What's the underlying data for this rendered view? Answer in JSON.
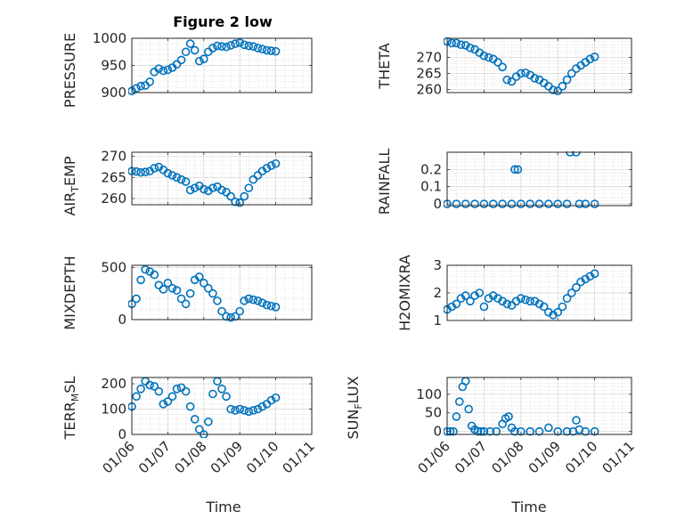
{
  "title": "Figure 2 low",
  "marker_color": "#0072BD",
  "chart_data": [
    {
      "type": "scatter",
      "ylabel": "PRESSURE",
      "ylim": [
        900,
        1000
      ],
      "yticks": [
        900,
        950,
        1000
      ],
      "grid": true,
      "x": [
        "2012-01-06 00:00",
        "2012-01-06 03:00",
        "2012-01-06 06:00",
        "2012-01-06 09:00",
        "2012-01-06 12:00",
        "2012-01-06 15:00",
        "2012-01-06 18:00",
        "2012-01-06 21:00",
        "2012-01-07 00:00",
        "2012-01-07 03:00",
        "2012-01-07 06:00",
        "2012-01-07 09:00",
        "2012-01-07 12:00",
        "2012-01-07 15:00",
        "2012-01-07 18:00",
        "2012-01-07 21:00",
        "2012-01-08 00:00",
        "2012-01-08 03:00",
        "2012-01-08 06:00",
        "2012-01-08 09:00",
        "2012-01-08 12:00",
        "2012-01-08 15:00",
        "2012-01-08 18:00",
        "2012-01-08 21:00",
        "2012-01-09 00:00",
        "2012-01-09 03:00",
        "2012-01-09 06:00",
        "2012-01-09 09:00",
        "2012-01-09 12:00",
        "2012-01-09 15:00",
        "2012-01-09 18:00",
        "2012-01-09 21:00",
        "2012-01-10 00:00"
      ],
      "y": [
        903,
        908,
        912,
        913,
        920,
        938,
        944,
        940,
        942,
        946,
        952,
        960,
        975,
        990,
        978,
        958,
        962,
        975,
        982,
        986,
        985,
        984,
        987,
        990,
        992,
        988,
        986,
        985,
        982,
        980,
        978,
        977,
        976
      ]
    },
    {
      "type": "scatter",
      "ylabel": "THETA",
      "ylim": [
        259,
        276
      ],
      "yticks": [
        260,
        265,
        270
      ],
      "grid": true,
      "x": [
        "2012-01-06 00:00",
        "2012-01-06 03:00",
        "2012-01-06 06:00",
        "2012-01-06 09:00",
        "2012-01-06 12:00",
        "2012-01-06 15:00",
        "2012-01-06 18:00",
        "2012-01-06 21:00",
        "2012-01-07 00:00",
        "2012-01-07 03:00",
        "2012-01-07 06:00",
        "2012-01-07 09:00",
        "2012-01-07 12:00",
        "2012-01-07 15:00",
        "2012-01-07 18:00",
        "2012-01-07 21:00",
        "2012-01-08 00:00",
        "2012-01-08 03:00",
        "2012-01-08 06:00",
        "2012-01-08 09:00",
        "2012-01-08 12:00",
        "2012-01-08 15:00",
        "2012-01-08 18:00",
        "2012-01-08 21:00",
        "2012-01-09 00:00",
        "2012-01-09 03:00",
        "2012-01-09 06:00",
        "2012-01-09 09:00",
        "2012-01-09 12:00",
        "2012-01-09 15:00",
        "2012-01-09 18:00",
        "2012-01-09 21:00",
        "2012-01-10 00:00"
      ],
      "y": [
        275,
        274.5,
        274.5,
        274,
        273.8,
        273,
        272.5,
        271.5,
        270.5,
        270,
        269.5,
        268.5,
        267,
        263,
        262.5,
        264,
        265,
        265.2,
        264.5,
        263.5,
        263,
        262,
        261,
        259.8,
        259.5,
        261,
        263,
        265,
        266.5,
        267.5,
        268.5,
        269.5,
        270.2
      ]
    },
    {
      "type": "scatter",
      "ylabel": "AIR_TEMP",
      "ylim": [
        258.5,
        271
      ],
      "yticks": [
        260,
        265,
        270
      ],
      "grid": true,
      "x": [
        "2012-01-06 00:00",
        "2012-01-06 03:00",
        "2012-01-06 06:00",
        "2012-01-06 09:00",
        "2012-01-06 12:00",
        "2012-01-06 15:00",
        "2012-01-06 18:00",
        "2012-01-06 21:00",
        "2012-01-07 00:00",
        "2012-01-07 03:00",
        "2012-01-07 06:00",
        "2012-01-07 09:00",
        "2012-01-07 12:00",
        "2012-01-07 15:00",
        "2012-01-07 18:00",
        "2012-01-07 21:00",
        "2012-01-08 00:00",
        "2012-01-08 03:00",
        "2012-01-08 06:00",
        "2012-01-08 09:00",
        "2012-01-08 12:00",
        "2012-01-08 15:00",
        "2012-01-08 18:00",
        "2012-01-08 21:00",
        "2012-01-09 00:00",
        "2012-01-09 03:00",
        "2012-01-09 06:00",
        "2012-01-09 09:00",
        "2012-01-09 12:00",
        "2012-01-09 15:00",
        "2012-01-09 18:00",
        "2012-01-09 21:00",
        "2012-01-10 00:00"
      ],
      "y": [
        266.5,
        266.4,
        266.2,
        266.3,
        266.5,
        267.2,
        267.5,
        266.8,
        266,
        265.5,
        265,
        264.5,
        264,
        262,
        262.5,
        263,
        262.2,
        261.8,
        262.5,
        262.8,
        262,
        261.5,
        260.5,
        259.2,
        259,
        260.5,
        262.5,
        264.5,
        265.5,
        266.5,
        267.2,
        267.8,
        268.3
      ]
    },
    {
      "type": "scatter",
      "ylabel": "RAINFALL",
      "ylim": [
        -0.01,
        0.3
      ],
      "yticks": [
        0,
        0.1,
        0.2
      ],
      "grid": true,
      "x": [
        "2012-01-06 00:00",
        "2012-01-06 06:00",
        "2012-01-06 12:00",
        "2012-01-06 18:00",
        "2012-01-07 00:00",
        "2012-01-07 06:00",
        "2012-01-07 12:00",
        "2012-01-07 18:00",
        "2012-01-07 20:00",
        "2012-01-07 22:00",
        "2012-01-08 00:00",
        "2012-01-08 06:00",
        "2012-01-08 12:00",
        "2012-01-08 18:00",
        "2012-01-09 00:00",
        "2012-01-09 06:00",
        "2012-01-09 08:00",
        "2012-01-09 12:00",
        "2012-01-09 14:00",
        "2012-01-09 18:00",
        "2012-01-10 00:00"
      ],
      "y": [
        0,
        0,
        0,
        0,
        0,
        0,
        0,
        0,
        0.2,
        0.2,
        0,
        0,
        0,
        0,
        0,
        0,
        0.3,
        0.3,
        0,
        0,
        0
      ]
    },
    {
      "type": "scatter",
      "ylabel": "MIXDEPTH",
      "ylim": [
        0,
        520
      ],
      "yticks": [
        0,
        500
      ],
      "grid": true,
      "x": [
        "2012-01-06 00:00",
        "2012-01-06 03:00",
        "2012-01-06 06:00",
        "2012-01-06 09:00",
        "2012-01-06 12:00",
        "2012-01-06 15:00",
        "2012-01-06 18:00",
        "2012-01-06 21:00",
        "2012-01-07 00:00",
        "2012-01-07 03:00",
        "2012-01-07 06:00",
        "2012-01-07 09:00",
        "2012-01-07 12:00",
        "2012-01-07 15:00",
        "2012-01-07 18:00",
        "2012-01-07 21:00",
        "2012-01-08 00:00",
        "2012-01-08 03:00",
        "2012-01-08 06:00",
        "2012-01-08 09:00",
        "2012-01-08 12:00",
        "2012-01-08 15:00",
        "2012-01-08 18:00",
        "2012-01-08 21:00",
        "2012-01-09 00:00",
        "2012-01-09 03:00",
        "2012-01-09 06:00",
        "2012-01-09 09:00",
        "2012-01-09 12:00",
        "2012-01-09 15:00",
        "2012-01-09 18:00",
        "2012-01-09 21:00",
        "2012-01-10 00:00"
      ],
      "y": [
        150,
        200,
        380,
        480,
        460,
        430,
        330,
        290,
        350,
        300,
        280,
        200,
        150,
        250,
        380,
        410,
        350,
        300,
        250,
        180,
        80,
        30,
        20,
        30,
        80,
        180,
        200,
        190,
        180,
        160,
        140,
        130,
        120
      ]
    },
    {
      "type": "scatter",
      "ylabel": "H2OMIXRA",
      "ylim": [
        1,
        3
      ],
      "yticks": [
        1,
        2,
        3
      ],
      "grid": true,
      "x": [
        "2012-01-06 00:00",
        "2012-01-06 03:00",
        "2012-01-06 06:00",
        "2012-01-06 09:00",
        "2012-01-06 12:00",
        "2012-01-06 15:00",
        "2012-01-06 18:00",
        "2012-01-06 21:00",
        "2012-01-07 00:00",
        "2012-01-07 03:00",
        "2012-01-07 06:00",
        "2012-01-07 09:00",
        "2012-01-07 12:00",
        "2012-01-07 15:00",
        "2012-01-07 18:00",
        "2012-01-07 21:00",
        "2012-01-08 00:00",
        "2012-01-08 03:00",
        "2012-01-08 06:00",
        "2012-01-08 09:00",
        "2012-01-08 12:00",
        "2012-01-08 15:00",
        "2012-01-08 18:00",
        "2012-01-08 21:00",
        "2012-01-09 00:00",
        "2012-01-09 03:00",
        "2012-01-09 06:00",
        "2012-01-09 09:00",
        "2012-01-09 12:00",
        "2012-01-09 15:00",
        "2012-01-09 18:00",
        "2012-01-09 21:00",
        "2012-01-10 00:00"
      ],
      "y": [
        1.4,
        1.5,
        1.6,
        1.8,
        1.9,
        1.7,
        1.9,
        2.0,
        1.5,
        1.8,
        1.9,
        1.8,
        1.7,
        1.6,
        1.55,
        1.7,
        1.8,
        1.75,
        1.7,
        1.7,
        1.6,
        1.5,
        1.3,
        1.2,
        1.3,
        1.5,
        1.8,
        2.0,
        2.2,
        2.4,
        2.5,
        2.6,
        2.7
      ]
    },
    {
      "type": "scatter",
      "ylabel": "TERR_MSL",
      "ylim": [
        0,
        225
      ],
      "yticks": [
        0,
        100,
        200
      ],
      "grid": true,
      "x": [
        "2012-01-06 00:00",
        "2012-01-06 03:00",
        "2012-01-06 06:00",
        "2012-01-06 09:00",
        "2012-01-06 12:00",
        "2012-01-06 15:00",
        "2012-01-06 18:00",
        "2012-01-06 21:00",
        "2012-01-07 00:00",
        "2012-01-07 03:00",
        "2012-01-07 06:00",
        "2012-01-07 09:00",
        "2012-01-07 12:00",
        "2012-01-07 15:00",
        "2012-01-07 18:00",
        "2012-01-07 21:00",
        "2012-01-08 00:00",
        "2012-01-08 03:00",
        "2012-01-08 06:00",
        "2012-01-08 09:00",
        "2012-01-08 12:00",
        "2012-01-08 15:00",
        "2012-01-08 18:00",
        "2012-01-08 21:00",
        "2012-01-09 00:00",
        "2012-01-09 03:00",
        "2012-01-09 06:00",
        "2012-01-09 09:00",
        "2012-01-09 12:00",
        "2012-01-09 15:00",
        "2012-01-09 18:00",
        "2012-01-09 21:00",
        "2012-01-10 00:00"
      ],
      "y": [
        110,
        150,
        180,
        210,
        195,
        190,
        170,
        120,
        130,
        150,
        180,
        185,
        170,
        110,
        60,
        20,
        0,
        50,
        160,
        210,
        180,
        150,
        100,
        95,
        100,
        95,
        90,
        95,
        100,
        110,
        120,
        135,
        145
      ]
    },
    {
      "type": "scatter",
      "ylabel": "SUN_FLUX",
      "ylim": [
        -8,
        145
      ],
      "yticks": [
        0,
        50,
        100
      ],
      "grid": true,
      "x": [
        "2012-01-06 00:00",
        "2012-01-06 02:00",
        "2012-01-06 04:00",
        "2012-01-06 06:00",
        "2012-01-06 08:00",
        "2012-01-06 10:00",
        "2012-01-06 12:00",
        "2012-01-06 14:00",
        "2012-01-06 16:00",
        "2012-01-06 18:00",
        "2012-01-06 20:00",
        "2012-01-06 22:00",
        "2012-01-07 00:00",
        "2012-01-07 04:00",
        "2012-01-07 08:00",
        "2012-01-07 12:00",
        "2012-01-07 14:00",
        "2012-01-07 16:00",
        "2012-01-07 18:00",
        "2012-01-07 20:00",
        "2012-01-08 00:00",
        "2012-01-08 06:00",
        "2012-01-08 12:00",
        "2012-01-08 18:00",
        "2012-01-09 00:00",
        "2012-01-09 06:00",
        "2012-01-09 10:00",
        "2012-01-09 12:00",
        "2012-01-09 14:00",
        "2012-01-09 18:00",
        "2012-01-10 00:00"
      ],
      "y": [
        0,
        0,
        0,
        40,
        80,
        120,
        135,
        60,
        15,
        5,
        0,
        0,
        0,
        0,
        0,
        20,
        35,
        40,
        10,
        0,
        0,
        0,
        0,
        10,
        0,
        0,
        0,
        30,
        5,
        0,
        0
      ]
    }
  ],
  "xaxis": {
    "label": "Time",
    "range": [
      "2012-01-06",
      "2012-01-11"
    ],
    "ticks": [
      "2012-01-06",
      "2012-01-07",
      "2012-01-08",
      "2012-01-09",
      "2012-01-10",
      "2012-01-11"
    ],
    "tick_labels": [
      "01/06",
      "01/07",
      "01/08",
      "01/09",
      "01/10",
      "01/11"
    ]
  }
}
